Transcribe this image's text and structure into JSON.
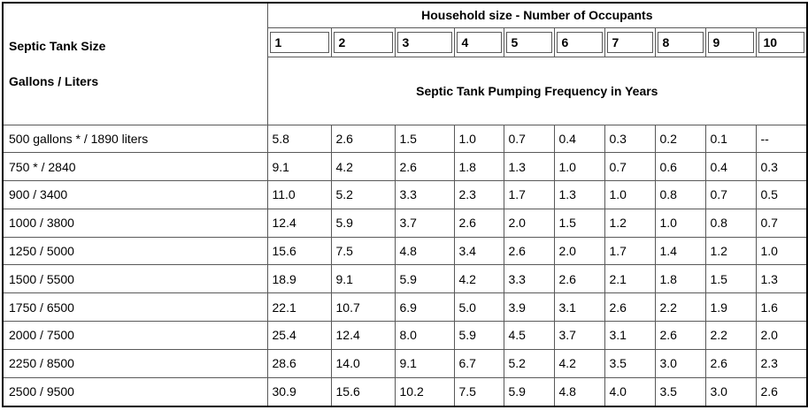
{
  "chart_data": {
    "type": "table",
    "title": "Septic Tank Pumping Frequency in Years",
    "columns_group_label": "Household size - Number of Occupants",
    "row_group_label": [
      "Septic Tank Size",
      "Gallons / Liters"
    ],
    "columns": [
      "1",
      "2",
      "3",
      "4",
      "5",
      "6",
      "7",
      "8",
      "9",
      "10"
    ],
    "rows": [
      {
        "label": "500 gallons * / 1890 liters",
        "values": [
          "5.8",
          "2.6",
          "1.5",
          "1.0",
          "0.7",
          "0.4",
          "0.3",
          "0.2",
          "0.1",
          "--"
        ]
      },
      {
        "label": "750 * / 2840",
        "values": [
          "9.1",
          "4.2",
          "2.6",
          "1.8",
          "1.3",
          "1.0",
          "0.7",
          "0.6",
          "0.4",
          "0.3"
        ]
      },
      {
        "label": "900 / 3400",
        "values": [
          "11.0",
          "5.2",
          "3.3",
          "2.3",
          "1.7",
          "1.3",
          "1.0",
          "0.8",
          "0.7",
          "0.5"
        ]
      },
      {
        "label": "1000 / 3800",
        "values": [
          "12.4",
          "5.9",
          "3.7",
          "2.6",
          "2.0",
          "1.5",
          "1.2",
          "1.0",
          "0.8",
          "0.7"
        ]
      },
      {
        "label": "1250 / 5000",
        "values": [
          "15.6",
          "7.5",
          "4.8",
          "3.4",
          "2.6",
          "2.0",
          "1.7",
          "1.4",
          "1.2",
          "1.0"
        ]
      },
      {
        "label": "1500 / 5500",
        "values": [
          "18.9",
          "9.1",
          "5.9",
          "4.2",
          "3.3",
          "2.6",
          "2.1",
          "1.8",
          "1.5",
          "1.3"
        ]
      },
      {
        "label": "1750 / 6500",
        "values": [
          "22.1",
          "10.7",
          "6.9",
          "5.0",
          "3.9",
          "3.1",
          "2.6",
          "2.2",
          "1.9",
          "1.6"
        ]
      },
      {
        "label": "2000 / 7500",
        "values": [
          "25.4",
          "12.4",
          "8.0",
          "5.9",
          "4.5",
          "3.7",
          "3.1",
          "2.6",
          "2.2",
          "2.0"
        ]
      },
      {
        "label": "2250 / 8500",
        "values": [
          "28.6",
          "14.0",
          "9.1",
          "6.7",
          "5.2",
          "4.2",
          "3.5",
          "3.0",
          "2.6",
          "2.3"
        ]
      },
      {
        "label": "2500 / 9500",
        "values": [
          "30.9",
          "15.6",
          "10.2",
          "7.5",
          "5.9",
          "4.8",
          "4.0",
          "3.5",
          "3.0",
          "2.6"
        ]
      }
    ]
  },
  "colors": {
    "background": "#ffffff",
    "text": "#000000",
    "border_outer": "#000000",
    "border_inner": "#595959"
  }
}
